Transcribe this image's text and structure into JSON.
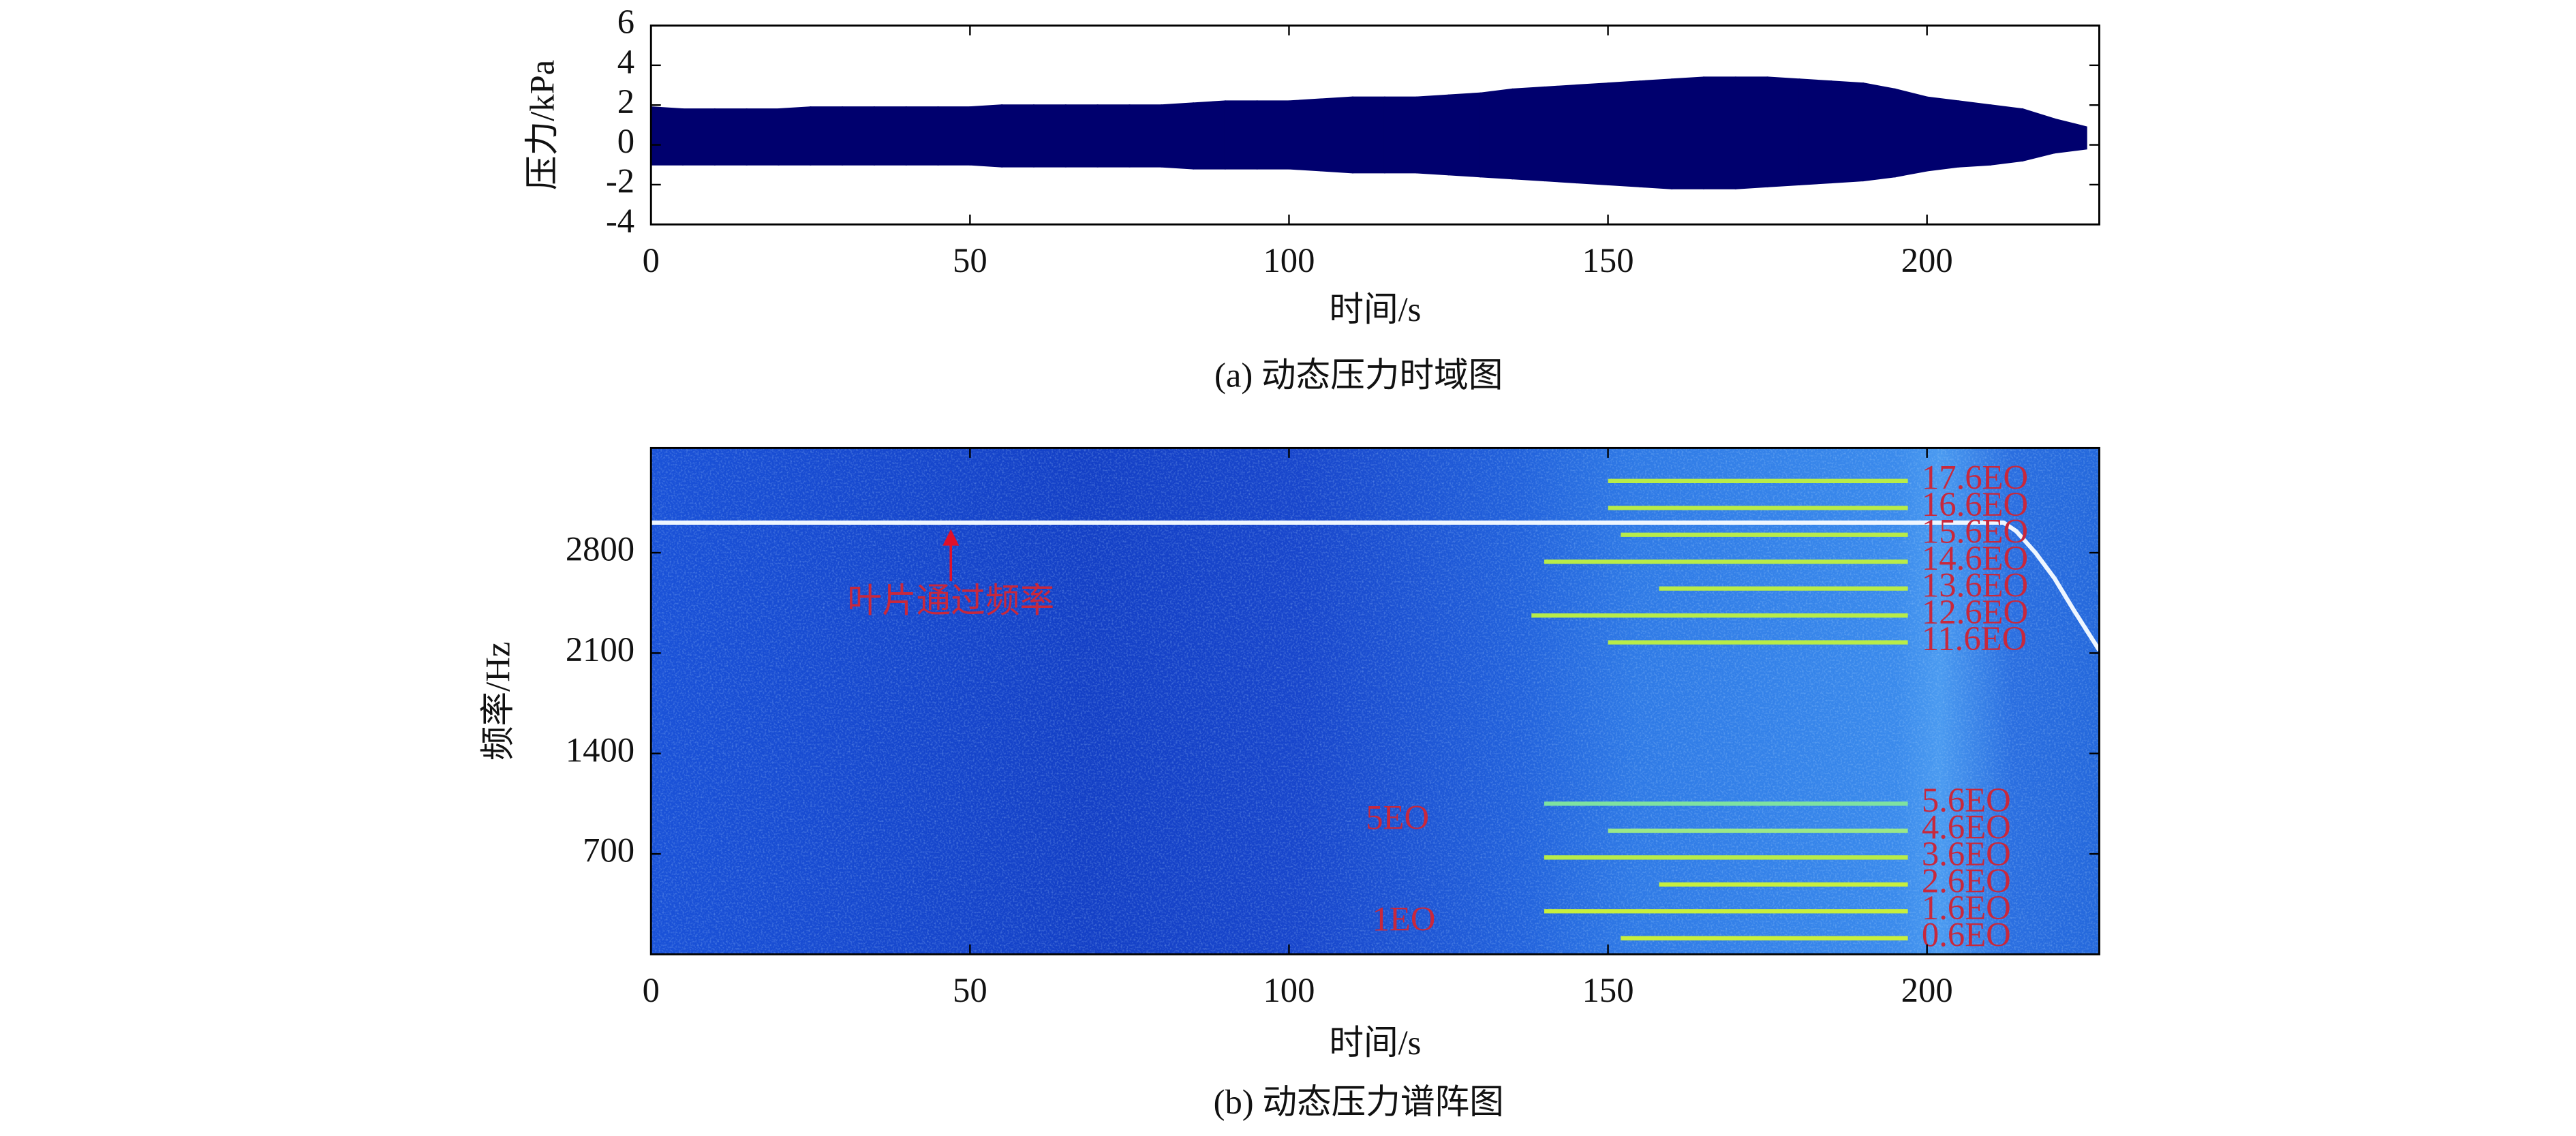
{
  "chart_data": [
    {
      "type": "envelope",
      "x_label": "时间/s",
      "y_label": "压力/kPa",
      "caption": "(a) 动态压力时域图",
      "color": "#00006e",
      "x": [
        0,
        5,
        10,
        15,
        20,
        25,
        30,
        35,
        40,
        45,
        50,
        55,
        60,
        65,
        70,
        75,
        80,
        85,
        90,
        95,
        100,
        105,
        110,
        115,
        120,
        125,
        130,
        135,
        140,
        145,
        150,
        155,
        160,
        165,
        170,
        175,
        180,
        185,
        190,
        195,
        200,
        205,
        210,
        215,
        220,
        225
      ],
      "upper": [
        1.9,
        1.8,
        1.8,
        1.8,
        1.8,
        1.9,
        1.9,
        1.9,
        1.9,
        1.9,
        1.9,
        2.0,
        2.0,
        2.0,
        2.0,
        2.0,
        2.0,
        2.1,
        2.2,
        2.2,
        2.2,
        2.3,
        2.4,
        2.4,
        2.4,
        2.5,
        2.6,
        2.8,
        2.9,
        3.0,
        3.1,
        3.2,
        3.3,
        3.4,
        3.4,
        3.4,
        3.3,
        3.2,
        3.1,
        2.8,
        2.4,
        2.2,
        2.0,
        1.8,
        1.3,
        0.9
      ],
      "lower": [
        -1.0,
        -1.0,
        -1.0,
        -1.0,
        -1.0,
        -1.0,
        -1.0,
        -1.0,
        -1.0,
        -1.0,
        -1.0,
        -1.1,
        -1.1,
        -1.1,
        -1.1,
        -1.1,
        -1.1,
        -1.2,
        -1.2,
        -1.2,
        -1.2,
        -1.3,
        -1.4,
        -1.4,
        -1.4,
        -1.5,
        -1.6,
        -1.7,
        -1.8,
        -1.9,
        -2.0,
        -2.1,
        -2.2,
        -2.2,
        -2.2,
        -2.1,
        -2.0,
        -1.9,
        -1.8,
        -1.6,
        -1.3,
        -1.1,
        -1.0,
        -0.8,
        -0.4,
        -0.2
      ],
      "xlim": [
        0,
        227
      ],
      "xticks": [
        0,
        50,
        100,
        150,
        200
      ],
      "ylim": [
        -4,
        6
      ],
      "yticks": [
        -4,
        -2,
        0,
        2,
        4,
        6
      ]
    },
    {
      "type": "spectrogram",
      "x_label": "时间/s",
      "y_label": "频率/Hz",
      "caption": "(b) 动态压力谱阵图",
      "xlim": [
        0,
        227
      ],
      "xticks": [
        0,
        50,
        100,
        150,
        200
      ],
      "ylim": [
        0,
        3530
      ],
      "yticks": [
        700,
        1400,
        2100,
        2800
      ],
      "series": [
        {
          "color": "#eef6ff",
          "x": [
            0,
            212,
            214,
            217,
            220,
            223,
            227
          ],
          "values": [
            3010,
            3010,
            2950,
            2800,
            2620,
            2400,
            2120
          ]
        },
        {
          "name": "17.6EO",
          "color": "#b8ec48",
          "x": [
            150,
            197
          ],
          "values": [
            3300,
            3300
          ]
        },
        {
          "name": "16.6EO",
          "color": "#b8ec48",
          "x": [
            150,
            197
          ],
          "values": [
            3112,
            3112
          ]
        },
        {
          "name": "15.6EO",
          "color": "#b8ec48",
          "x": [
            152,
            197
          ],
          "values": [
            2925,
            2925
          ]
        },
        {
          "name": "14.6EO",
          "color": "#b8ec48",
          "x": [
            140,
            197
          ],
          "values": [
            2737,
            2737
          ]
        },
        {
          "name": "13.6EO",
          "color": "#b8ec48",
          "x": [
            158,
            197
          ],
          "values": [
            2550,
            2550
          ]
        },
        {
          "name": "12.6EO",
          "color": "#b8ec48",
          "x": [
            138,
            197
          ],
          "values": [
            2362,
            2362
          ]
        },
        {
          "name": "11.6EO",
          "color": "#b8ec48",
          "x": [
            150,
            197
          ],
          "values": [
            2175,
            2175
          ]
        },
        {
          "name": "5.6EO",
          "color": "#7ee2a0",
          "x": [
            140,
            197
          ],
          "values": [
            1050,
            1050
          ]
        },
        {
          "name": "4.6EO",
          "color": "#9ae888",
          "x": [
            150,
            197
          ],
          "values": [
            862,
            862
          ]
        },
        {
          "name": "3.6EO",
          "color": "#b8ec48",
          "x": [
            140,
            197
          ],
          "values": [
            675,
            675
          ]
        },
        {
          "name": "2.6EO",
          "color": "#c8f03c",
          "x": [
            158,
            197
          ],
          "values": [
            487,
            487
          ]
        },
        {
          "name": "1.6EO",
          "color": "#c8f03c",
          "x": [
            140,
            197
          ],
          "values": [
            300,
            300
          ]
        },
        {
          "name": "0.6EO",
          "color": "#c8f03c",
          "x": [
            152,
            197
          ],
          "values": [
            112,
            112
          ]
        }
      ],
      "annotations": [
        {
          "text": "叶片通过频率",
          "x": 47,
          "y": 2440,
          "arrow_to": 3010
        },
        {
          "text": "5EO",
          "x": 117,
          "y": 930
        },
        {
          "text": "1EO",
          "x": 118,
          "y": 220
        }
      ]
    }
  ]
}
